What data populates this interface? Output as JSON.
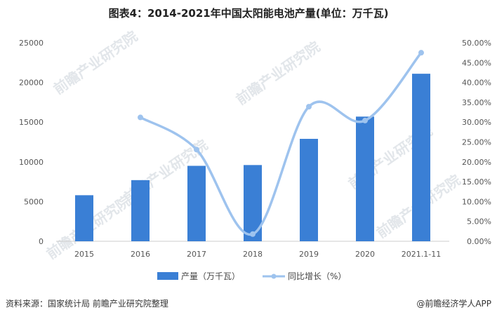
{
  "source": "资料来源：国家统计局 前瞻产业研究院整理",
  "brand": "@前瞻经济学人APP",
  "watermark": "前瞻产业研究院",
  "chart_data": {
    "type": "bar",
    "title": "图表4：2014-2021年中国太阳能电池产量(单位：万千瓦)",
    "categories": [
      "2015",
      "2016",
      "2017",
      "2018",
      "2019",
      "2020",
      "2021.1-11"
    ],
    "series": [
      {
        "name": "产量（万千瓦）",
        "type": "bar",
        "axis": "left",
        "color": "#3a7fd5",
        "values": [
          5800,
          7700,
          9500,
          9600,
          12900,
          15700,
          21100
        ]
      },
      {
        "name": "同比增长（%）",
        "type": "line",
        "axis": "right",
        "color": "#9ec3ee",
        "smooth": true,
        "values": [
          null,
          31.2,
          23.1,
          1.8,
          33.9,
          30.4,
          47.5
        ]
      }
    ],
    "y_left": {
      "ylim": [
        0,
        25000
      ],
      "ticks": [
        "0",
        "5000",
        "10000",
        "15000",
        "20000",
        "25000"
      ]
    },
    "y_right": {
      "ylim": [
        0,
        50
      ],
      "ticks": [
        "0.00%",
        "5.00%",
        "10.00%",
        "15.00%",
        "20.00%",
        "25.00%",
        "30.00%",
        "35.00%",
        "40.00%",
        "45.00%",
        "50.00%"
      ]
    },
    "grid": false,
    "legend": "bottom"
  }
}
